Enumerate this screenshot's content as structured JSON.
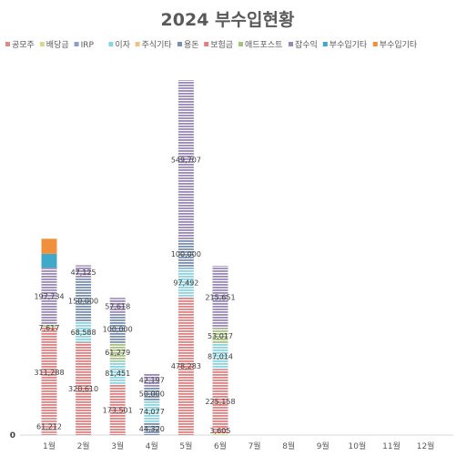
{
  "chart_data": {
    "type": "bar",
    "stacked": true,
    "title": "2024 부수입현황",
    "xlabel": "",
    "ylabel": "",
    "categories": [
      "1월",
      "2월",
      "3월",
      "4월",
      "5월",
      "6월",
      "7월",
      "8월",
      "9월",
      "10월",
      "11월",
      "12월"
    ],
    "y_axis_tick_label": "0",
    "ylim": [
      0,
      1320000
    ],
    "grid": false,
    "legend_position": "top",
    "series": [
      {
        "name": "공모주",
        "color": "#d98c8c",
        "pattern": "hlines",
        "values": [
          61212,
          0,
          0,
          0,
          0,
          0,
          0,
          0,
          0,
          0,
          0,
          0
        ],
        "labels": [
          "61,212",
          "",
          "",
          "",
          "",
          "",
          "",
          "",
          "",
          "",
          "",
          ""
        ]
      },
      {
        "name": "배당금",
        "color": "#d9d98c",
        "pattern": "hlines",
        "values": [
          0,
          0,
          0,
          0,
          0,
          3605,
          0,
          0,
          0,
          0,
          0,
          0
        ],
        "labels": [
          "",
          "",
          "",
          "",
          "",
          "3,605",
          "",
          "",
          "",
          "",
          "",
          ""
        ]
      },
      {
        "name": "IRP",
        "color": "#8c9fcc",
        "pattern": "hlines",
        "values": [
          0,
          0,
          0,
          0,
          0,
          0,
          0,
          0,
          0,
          0,
          0,
          0
        ],
        "labels": [
          "",
          "",
          "",
          "",
          "",
          "",
          "",
          "",
          "",
          "",
          "",
          ""
        ]
      },
      {
        "name": "이자",
        "color": "#8cd4e0",
        "pattern": "hlines",
        "values": [
          0,
          0,
          0,
          0,
          0,
          0,
          0,
          0,
          0,
          0,
          0,
          0
        ],
        "labels": [
          "",
          "",
          "",
          "",
          "",
          "",
          "",
          "",
          "",
          "",
          "",
          ""
        ]
      },
      {
        "name": "주식기타",
        "color": "#f0c08c",
        "pattern": "hlines",
        "values": [
          0,
          0,
          0,
          0,
          0,
          0,
          0,
          0,
          0,
          0,
          0,
          0
        ],
        "labels": [
          "",
          "",
          "",
          "",
          "",
          "",
          "",
          "",
          "",
          "",
          "",
          ""
        ]
      },
      {
        "name": "용돈",
        "color": "#7a8fb0",
        "pattern": "hlines",
        "values": [
          0,
          0,
          0,
          44320,
          0,
          0,
          0,
          0,
          0,
          0,
          0,
          0
        ],
        "labels": [
          "",
          "",
          "",
          "44,320",
          "",
          "",
          "",
          "",
          "",
          "",
          "",
          ""
        ]
      },
      {
        "name": "보험금",
        "color": "#e08080",
        "pattern": "hlines",
        "values": [
          311288,
          320610,
          173501,
          0,
          478283,
          225158,
          0,
          0,
          0,
          0,
          0,
          0
        ],
        "labels": [
          "311,288",
          "320,610",
          "173,501",
          "",
          "478,283",
          "225,158",
          "",
          "",
          "",
          "",
          "",
          ""
        ]
      },
      {
        "name": "애드포스트",
        "color": "#a8c080",
        "pattern": "hlines",
        "values": [
          0,
          0,
          0,
          0,
          0,
          0,
          0,
          0,
          0,
          0,
          0,
          0
        ],
        "labels": [
          "",
          "",
          "",
          "",
          "",
          "",
          "",
          "",
          "",
          "",
          "",
          ""
        ]
      },
      {
        "name": "잡수익",
        "color": "#9a88b8",
        "pattern": "hlines",
        "values": [
          0,
          0,
          0,
          0,
          0,
          0,
          0,
          0,
          0,
          0,
          0,
          0
        ],
        "labels": [
          "",
          "",
          "",
          "",
          "",
          "",
          "",
          "",
          "",
          "",
          "",
          ""
        ]
      },
      {
        "name": "부수입기타",
        "color": "#40a8c8",
        "pattern": "solid",
        "values": [
          0,
          0,
          0,
          0,
          0,
          0,
          0,
          0,
          0,
          0,
          0,
          0
        ],
        "labels": [
          "",
          "",
          "",
          "",
          "",
          "",
          "",
          "",
          "",
          "",
          "",
          ""
        ]
      },
      {
        "name": "부수입기타",
        "color": "#f0903c",
        "pattern": "solid",
        "values": [
          0,
          0,
          0,
          0,
          0,
          0,
          0,
          0,
          0,
          0,
          0,
          0
        ],
        "labels": [
          "",
          "",
          "",
          "",
          "",
          "",
          "",
          "",
          "",
          "",
          "",
          ""
        ]
      },
      {
        "name": "",
        "color": "#8cd4e0",
        "pattern": "hlines",
        "values": [
          0,
          68588,
          81451,
          74077,
          97492,
          87014,
          0,
          0,
          0,
          0,
          0,
          0
        ],
        "labels": [
          "",
          "68,588",
          "81,451",
          "74,077",
          "97,492",
          "87,014",
          "",
          "",
          "",
          "",
          "",
          ""
        ]
      },
      {
        "name": "",
        "color": "#a8c080",
        "pattern": "hlines",
        "values": [
          7617,
          0,
          61279,
          0,
          0,
          53017,
          0,
          0,
          0,
          0,
          0,
          0
        ],
        "labels": [
          "7,617",
          "",
          "61,279",
          "",
          "",
          "53,017",
          "",
          "",
          "",
          "",
          "",
          ""
        ]
      },
      {
        "name": "",
        "color": "#7a8fb0",
        "pattern": "hlines",
        "values": [
          0,
          150000,
          100000,
          50000,
          100000,
          0,
          0,
          0,
          0,
          0,
          0,
          0
        ],
        "labels": [
          "",
          "150,000",
          "100,000",
          "50,000",
          "100,000",
          "",
          "",
          "",
          "",
          "",
          "",
          ""
        ]
      },
      {
        "name": "",
        "color": "#9a88b8",
        "pattern": "hlines",
        "values": [
          197734,
          47125,
          57618,
          42197,
          549707,
          215651,
          0,
          0,
          0,
          0,
          0,
          0
        ],
        "labels": [
          "197,734",
          "47,125",
          "57,618",
          "42,197",
          "549,707",
          "215,651",
          "",
          "",
          "",
          "",
          "",
          ""
        ]
      },
      {
        "name": "",
        "color": "#40a8c8",
        "pattern": "solid",
        "values": [
          48000,
          0,
          0,
          0,
          0,
          0,
          0,
          0,
          0,
          0,
          0,
          0
        ],
        "labels": [
          "",
          "",
          "",
          "",
          "",
          "",
          "",
          "",
          "",
          "",
          "",
          ""
        ]
      },
      {
        "name": "",
        "color": "#f0903c",
        "pattern": "solid",
        "values": [
          52000,
          0,
          0,
          0,
          0,
          0,
          0,
          0,
          0,
          0,
          0,
          0
        ],
        "labels": [
          "",
          "",
          "",
          "",
          "",
          "",
          "",
          "",
          "",
          "",
          "",
          ""
        ]
      }
    ]
  }
}
